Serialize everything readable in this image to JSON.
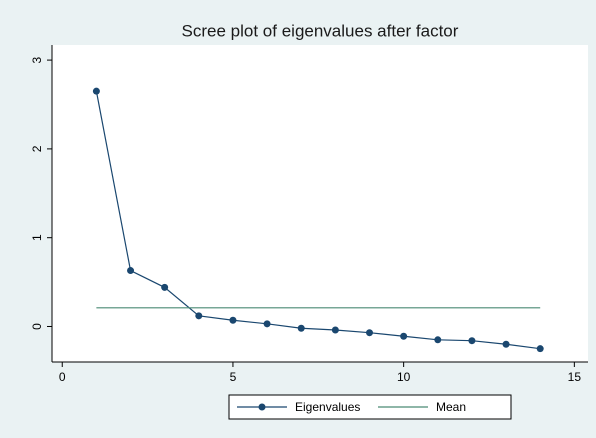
{
  "chart_data": {
    "type": "line",
    "title": "Scree plot of eigenvalues after factor",
    "x": [
      1,
      2,
      3,
      4,
      5,
      6,
      7,
      8,
      9,
      10,
      11,
      12,
      13,
      14
    ],
    "series": [
      {
        "name": "Eigenvalues",
        "color": "#1a476f",
        "markers": true,
        "values": [
          2.65,
          0.63,
          0.44,
          0.12,
          0.07,
          0.03,
          -0.02,
          -0.04,
          -0.07,
          -0.11,
          -0.15,
          -0.16,
          -0.2,
          -0.25
        ]
      },
      {
        "name": "Mean",
        "color": "#4a8a74",
        "markers": false,
        "values": [
          0.21,
          0.21,
          0.21,
          0.21,
          0.21,
          0.21,
          0.21,
          0.21,
          0.21,
          0.21,
          0.21,
          0.21,
          0.21,
          0.21
        ]
      }
    ],
    "xlim": [
      -0.3,
      15.4
    ],
    "ylim": [
      -0.4,
      3.17
    ],
    "xticks": [
      0,
      5,
      10,
      15
    ],
    "yticks": [
      0,
      1,
      2,
      3
    ],
    "grid": false,
    "legend": "bottom"
  }
}
